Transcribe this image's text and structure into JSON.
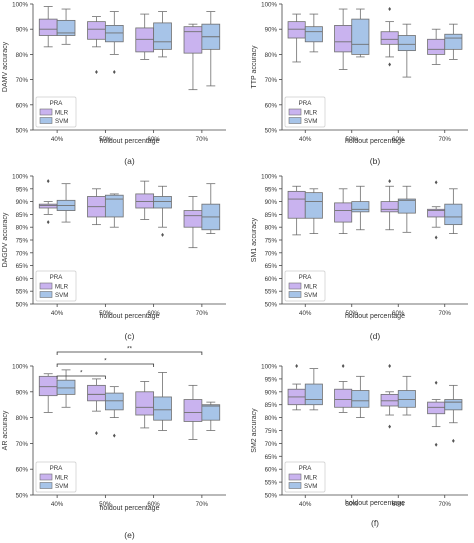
{
  "figure": {
    "palette": {
      "MLR": "#c9b3ef",
      "SVM": "#a7c4e8",
      "edge": "#6f6f6f",
      "axis": "#444444"
    },
    "legend_title": "PRA",
    "x_label": "holdout percentage"
  },
  "chart_data": [
    {
      "panel": "(a)",
      "type": "box",
      "ylabel": "DAMV accuracy",
      "ylim": [
        50,
        100
      ],
      "yticks": [
        "50%",
        "60%",
        "70%",
        "80%",
        "90%",
        "100%"
      ],
      "categories": [
        "40%",
        "50%",
        "60%",
        "70%"
      ],
      "legend_position": "lower-left",
      "series": [
        {
          "name": "MLR",
          "boxes": [
            {
              "min": 83,
              "q1": 87.5,
              "median": 90,
              "q3": 94,
              "max": 99,
              "outliers": []
            },
            {
              "min": 83,
              "q1": 86,
              "median": 90,
              "q3": 93,
              "max": 95,
              "outliers": [
                73
              ]
            },
            {
              "min": 78,
              "q1": 81,
              "median": 86,
              "q3": 90.5,
              "max": 96,
              "outliers": []
            },
            {
              "min": 66,
              "q1": 80.5,
              "median": 89,
              "q3": 91,
              "max": 92,
              "outliers": []
            }
          ]
        },
        {
          "name": "SVM",
          "boxes": [
            {
              "min": 84,
              "q1": 87.5,
              "median": 88.5,
              "q3": 93.5,
              "max": 98,
              "outliers": []
            },
            {
              "min": 80,
              "q1": 85,
              "median": 88.5,
              "q3": 91.5,
              "max": 97,
              "outliers": [
                73
              ]
            },
            {
              "min": 79,
              "q1": 82,
              "median": 85,
              "q3": 92.5,
              "max": 97,
              "outliers": []
            },
            {
              "min": 67.5,
              "q1": 82,
              "median": 87,
              "q3": 92,
              "max": 97,
              "outliers": []
            }
          ]
        }
      ],
      "annotations": []
    },
    {
      "panel": "(b)",
      "type": "box",
      "ylabel": "TTP accuracy",
      "ylim": [
        50,
        100
      ],
      "yticks": [
        "50%",
        "60%",
        "70%",
        "80%",
        "90%",
        "100%"
      ],
      "categories": [
        "40%",
        "50%",
        "60%",
        "70%"
      ],
      "legend_position": "lower-left",
      "series": [
        {
          "name": "MLR",
          "boxes": [
            {
              "min": 77,
              "q1": 86.5,
              "median": 90,
              "q3": 93,
              "max": 96,
              "outliers": []
            },
            {
              "min": 74,
              "q1": 81,
              "median": 85,
              "q3": 91.5,
              "max": 98,
              "outliers": []
            },
            {
              "min": 79,
              "q1": 84,
              "median": 86,
              "q3": 89,
              "max": 93,
              "outliers": [
                76,
                98
              ]
            },
            {
              "min": 76,
              "q1": 80,
              "median": 82,
              "q3": 86,
              "max": 90,
              "outliers": []
            }
          ]
        },
        {
          "name": "SVM",
          "boxes": [
            {
              "min": 81,
              "q1": 85,
              "median": 89,
              "q3": 91,
              "max": 96,
              "outliers": []
            },
            {
              "min": 79,
              "q1": 80,
              "median": 84,
              "q3": 94,
              "max": 98,
              "outliers": []
            },
            {
              "min": 71,
              "q1": 81.5,
              "median": 84,
              "q3": 87.5,
              "max": 92,
              "outliers": []
            },
            {
              "min": 78,
              "q1": 82,
              "median": 86.5,
              "q3": 88,
              "max": 92,
              "outliers": []
            }
          ]
        }
      ],
      "annotations": []
    },
    {
      "panel": "(c)",
      "type": "box",
      "ylabel": "DAGDV accuracy",
      "ylim": [
        50,
        100
      ],
      "yticks": [
        "50%",
        "55%",
        "60%",
        "65%",
        "70%",
        "75%",
        "80%",
        "85%",
        "90%",
        "95%",
        "100%"
      ],
      "categories": [
        "40%",
        "50%",
        "60%",
        "70%"
      ],
      "legend_position": "lower-left",
      "series": [
        {
          "name": "MLR",
          "boxes": [
            {
              "min": 85,
              "q1": 87.5,
              "median": 88.5,
              "q3": 89,
              "max": 90,
              "outliers": [
                82,
                98
              ]
            },
            {
              "min": 81,
              "q1": 84,
              "median": 88,
              "q3": 92,
              "max": 95,
              "outliers": []
            },
            {
              "min": 83,
              "q1": 87.5,
              "median": 90,
              "q3": 93,
              "max": 98,
              "outliers": []
            },
            {
              "min": 72,
              "q1": 80,
              "median": 84.5,
              "q3": 86.5,
              "max": 92,
              "outliers": []
            }
          ]
        },
        {
          "name": "SVM",
          "boxes": [
            {
              "min": 82,
              "q1": 86.5,
              "median": 88.5,
              "q3": 90.5,
              "max": 97,
              "outliers": []
            },
            {
              "min": 80,
              "q1": 84,
              "median": 91,
              "q3": 92.5,
              "max": 93,
              "outliers": []
            },
            {
              "min": 80,
              "q1": 87.5,
              "median": 90,
              "q3": 92,
              "max": 96,
              "outliers": [
                77
              ]
            },
            {
              "min": 77.5,
              "q1": 79,
              "median": 84,
              "q3": 89,
              "max": 97,
              "outliers": []
            }
          ]
        }
      ],
      "annotations": []
    },
    {
      "panel": "(d)",
      "type": "box",
      "ylabel": "SM1 accuracy",
      "ylim": [
        50,
        100
      ],
      "yticks": [
        "50%",
        "55%",
        "60%",
        "65%",
        "70%",
        "75%",
        "80%",
        "85%",
        "90%",
        "95%",
        "100%"
      ],
      "categories": [
        "40%",
        "50%",
        "60%",
        "70%"
      ],
      "legend_position": "lower-left",
      "series": [
        {
          "name": "MLR",
          "boxes": [
            {
              "min": 77,
              "q1": 83.5,
              "median": 91,
              "q3": 94,
              "max": 96,
              "outliers": []
            },
            {
              "min": 77.5,
              "q1": 82,
              "median": 86.5,
              "q3": 89.5,
              "max": 95,
              "outliers": []
            },
            {
              "min": 79,
              "q1": 86,
              "median": 87,
              "q3": 90,
              "max": 96,
              "outliers": [
                98
              ]
            },
            {
              "min": 80,
              "q1": 84,
              "median": 86.5,
              "q3": 87,
              "max": 88,
              "outliers": [
                97.5,
                76
              ]
            }
          ]
        },
        {
          "name": "SVM",
          "boxes": [
            {
              "min": 77.5,
              "q1": 83.5,
              "median": 90,
              "q3": 93.5,
              "max": 95,
              "outliers": []
            },
            {
              "min": 79,
              "q1": 86,
              "median": 87,
              "q3": 90,
              "max": 96,
              "outliers": []
            },
            {
              "min": 78,
              "q1": 85.5,
              "median": 90.5,
              "q3": 91,
              "max": 96,
              "outliers": []
            },
            {
              "min": 77.5,
              "q1": 81,
              "median": 84,
              "q3": 89,
              "max": 95,
              "outliers": []
            }
          ]
        }
      ],
      "annotations": []
    },
    {
      "panel": "(e)",
      "type": "box",
      "ylabel": "AR accuracy",
      "ylim": [
        50,
        100
      ],
      "yticks": [
        "50%",
        "60%",
        "70%",
        "80%",
        "90%",
        "100%"
      ],
      "categories": [
        "40%",
        "50%",
        "60%",
        "70%"
      ],
      "legend_position": "lower-left",
      "series": [
        {
          "name": "MLR",
          "boxes": [
            {
              "min": 82,
              "q1": 88.5,
              "median": 92,
              "q3": 96,
              "max": 97,
              "outliers": []
            },
            {
              "min": 82.5,
              "q1": 86.5,
              "median": 89,
              "q3": 92.5,
              "max": 95,
              "outliers": [
                74
              ]
            },
            {
              "min": 76,
              "q1": 81,
              "median": 84,
              "q3": 90,
              "max": 94,
              "outliers": []
            },
            {
              "min": 71.5,
              "q1": 78.5,
              "median": 82,
              "q3": 87,
              "max": 92.5,
              "outliers": []
            }
          ]
        },
        {
          "name": "SVM",
          "boxes": [
            {
              "min": 84,
              "q1": 89,
              "median": 91.5,
              "q3": 94.5,
              "max": 98.5,
              "outliers": []
            },
            {
              "min": 80,
              "q1": 83,
              "median": 86.5,
              "q3": 89.5,
              "max": 92,
              "outliers": [
                73
              ]
            },
            {
              "min": 75,
              "q1": 79,
              "median": 83,
              "q3": 88,
              "max": 97.5,
              "outliers": []
            },
            {
              "min": 75,
              "q1": 79,
              "median": 84.5,
              "q3": 85,
              "max": 86,
              "outliers": []
            }
          ]
        }
      ],
      "annotations": [
        {
          "from": "40%",
          "to": "70%",
          "label": "**"
        },
        {
          "from": "40%",
          "to": "60%",
          "label": "*"
        },
        {
          "from": "40%",
          "to": "50%",
          "label": "*"
        }
      ]
    },
    {
      "panel": "(f)",
      "type": "box",
      "ylabel": "SM2 accuracy",
      "ylim": [
        50,
        100
      ],
      "yticks": [
        "50%",
        "55%",
        "60%",
        "65%",
        "70%",
        "75%",
        "80%",
        "85%",
        "90%",
        "95%",
        "100%"
      ],
      "categories": [
        "40%",
        "50%",
        "60%",
        "70%"
      ],
      "legend_position": "lower-left",
      "series": [
        {
          "name": "MLR",
          "boxes": [
            {
              "min": 83,
              "q1": 85,
              "median": 88,
              "q3": 91,
              "max": 93,
              "outliers": [
                100
              ]
            },
            {
              "min": 82,
              "q1": 84,
              "median": 87,
              "q3": 91,
              "max": 94,
              "outliers": [
                100
              ]
            },
            {
              "min": 81,
              "q1": 84.5,
              "median": 86.5,
              "q3": 89,
              "max": 90,
              "outliers": [
                76.5,
                100
              ]
            },
            {
              "min": 76.5,
              "q1": 81.5,
              "median": 84,
              "q3": 86,
              "max": 87,
              "outliers": [
                93.5,
                69.5
              ]
            }
          ]
        },
        {
          "name": "SVM",
          "boxes": [
            {
              "min": 83,
              "q1": 85,
              "median": 87,
              "q3": 93,
              "max": 99,
              "outliers": []
            },
            {
              "min": 80,
              "q1": 84,
              "median": 86.5,
              "q3": 90.5,
              "max": 96,
              "outliers": []
            },
            {
              "min": 81,
              "q1": 84,
              "median": 87,
              "q3": 90.5,
              "max": 96,
              "outliers": []
            },
            {
              "min": 78,
              "q1": 83,
              "median": 86,
              "q3": 87,
              "max": 92.5,
              "outliers": [
                71
              ]
            }
          ]
        }
      ],
      "annotations": []
    }
  ]
}
